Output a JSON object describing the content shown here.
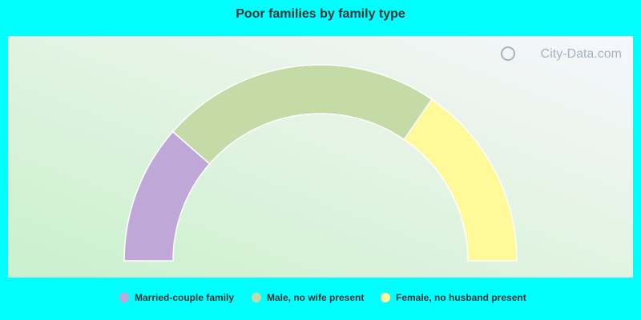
{
  "chart_data": {
    "type": "half-donut",
    "title": "Poor families by family type",
    "watermark": "City-Data.com",
    "categories": [
      "Married-couple family",
      "Male, no wife present",
      "Female, no husband present"
    ],
    "values": [
      22.9,
      46.3,
      30.8
    ],
    "colors": [
      "#bfa8d8",
      "#c4dba8",
      "#fff99a"
    ]
  }
}
